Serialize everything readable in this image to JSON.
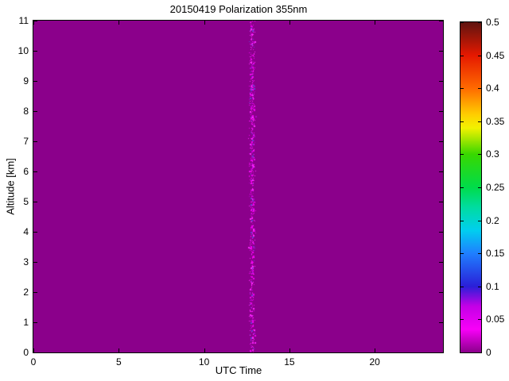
{
  "chart_data": {
    "type": "heatmap",
    "title": "20150419 Polarization 355nm",
    "xlabel": "UTC Time",
    "ylabel": "Altitude [km]",
    "xlim": [
      0,
      24
    ],
    "ylim": [
      0,
      11
    ],
    "x_ticks": [
      0,
      5,
      10,
      15,
      20
    ],
    "x_tick_labels": [
      "0",
      "5",
      "10",
      "15",
      "20"
    ],
    "y_ticks": [
      0,
      1,
      2,
      3,
      4,
      5,
      6,
      7,
      8,
      9,
      10,
      11
    ],
    "y_tick_labels": [
      "0",
      "1",
      "2",
      "3",
      "4",
      "5",
      "6",
      "7",
      "8",
      "9",
      "10",
      "11"
    ],
    "grid": false,
    "background_value": 0,
    "background_color": "#8B008B",
    "features": [
      {
        "type": "noise-streak",
        "description": "narrow vertical band of speckle noise spanning all altitudes",
        "x_center_utc": 12.8,
        "x_halfwidth_utc": 0.14,
        "y_range_km": [
          0,
          11
        ],
        "speckle_colors": [
          "#f000f0",
          "#ff2aff",
          "#b400c8",
          "#6a3fd0"
        ],
        "speckle_weights": [
          0.45,
          0.25,
          0.2,
          0.1
        ],
        "dot_count": 750
      }
    ],
    "colorbar": {
      "position": "right",
      "min": 0,
      "max": 0.5,
      "ticks": [
        0,
        0.05,
        0.1,
        0.15,
        0.2,
        0.25,
        0.3,
        0.35,
        0.4,
        0.45,
        0.5
      ],
      "tick_labels": [
        "0",
        "0.05",
        "0.1",
        "0.15",
        "0.2",
        "0.25",
        "0.3",
        "0.35",
        "0.4",
        "0.45",
        "0.5"
      ],
      "colormap_stops": [
        {
          "value": 0.0,
          "color": "#8B008B"
        },
        {
          "value": 0.035,
          "color": "#F800F8"
        },
        {
          "value": 0.07,
          "color": "#C400E6"
        },
        {
          "value": 0.1,
          "color": "#2A1FD8"
        },
        {
          "value": 0.15,
          "color": "#1F7FFF"
        },
        {
          "value": 0.185,
          "color": "#00CFEF"
        },
        {
          "value": 0.22,
          "color": "#00DCA0"
        },
        {
          "value": 0.25,
          "color": "#00DC4A"
        },
        {
          "value": 0.3,
          "color": "#38D800"
        },
        {
          "value": 0.325,
          "color": "#AEE800"
        },
        {
          "value": 0.34,
          "color": "#F2F200"
        },
        {
          "value": 0.36,
          "color": "#FFCE00"
        },
        {
          "value": 0.4,
          "color": "#FF6A00"
        },
        {
          "value": 0.45,
          "color": "#E51800"
        },
        {
          "value": 0.5,
          "color": "#5F1410"
        }
      ]
    }
  }
}
